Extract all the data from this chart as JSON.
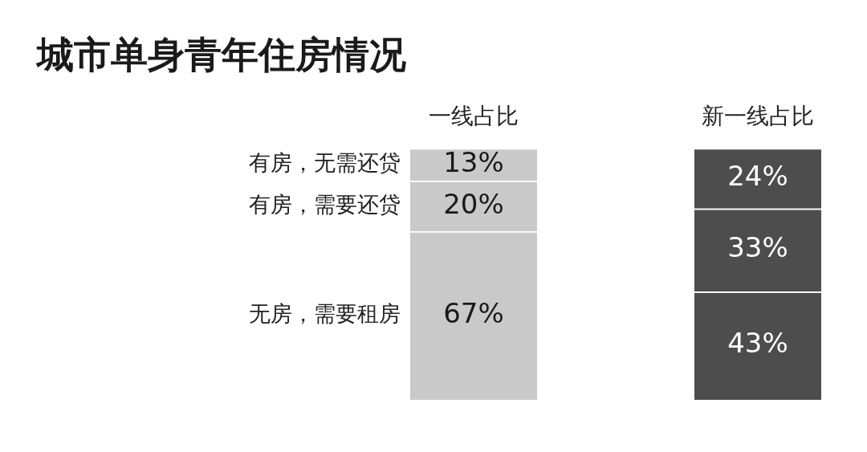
{
  "chart_data": {
    "type": "bar",
    "title": "城市单身青年住房情况",
    "stacked": true,
    "categories": [
      "一线占比",
      "新一线占比"
    ],
    "data_labels": true,
    "legend": false,
    "series": [
      {
        "name": "无房，需要租房",
        "colors": [
          "#c9c9c9",
          "#4d4d4d"
        ],
        "values": [
          67,
          43
        ],
        "value_labels": [
          "67%",
          "43%"
        ]
      },
      {
        "name": "有房，需要还贷",
        "colors": [
          "#c9c9c9",
          "#4d4d4d"
        ],
        "values": [
          20,
          33
        ],
        "value_labels": [
          "20%",
          "33%"
        ]
      },
      {
        "name": "有房，无需还贷",
        "colors": [
          "#c9c9c9",
          "#4d4d4d"
        ],
        "values": [
          13,
          24
        ],
        "value_labels": [
          "13%",
          "24%"
        ]
      }
    ]
  }
}
